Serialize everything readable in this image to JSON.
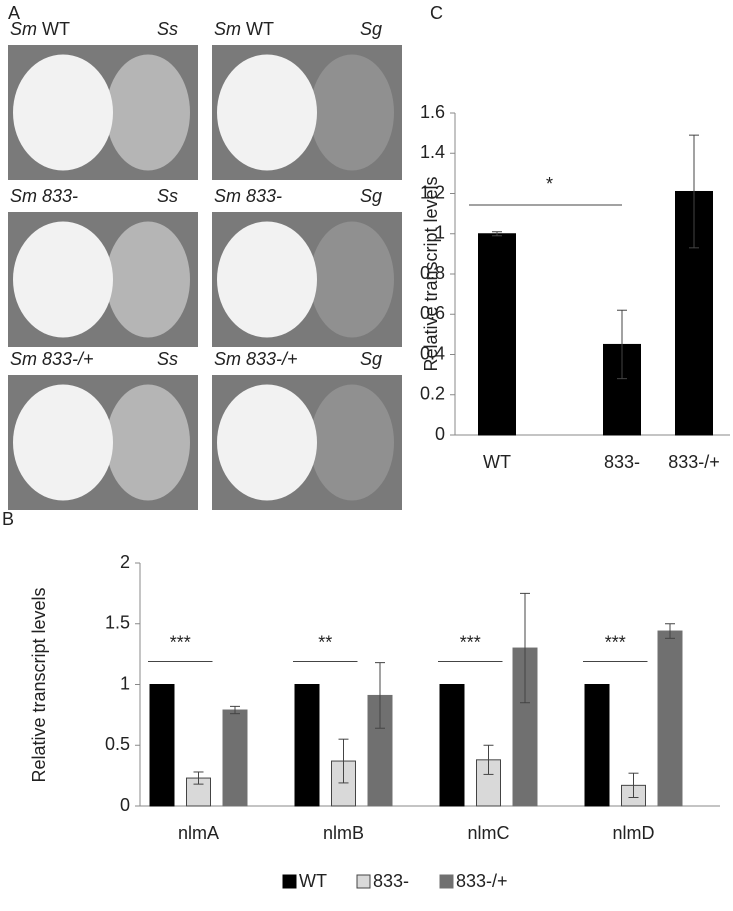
{
  "figure": {
    "panel_a": {
      "label": "A",
      "plates": [
        {
          "species": "Sm",
          "strain": "WT",
          "partner": "Ss"
        },
        {
          "species": "Sm",
          "strain": "WT",
          "partner": "Sg"
        },
        {
          "species": "Sm",
          "strain": "833-",
          "partner": "Ss"
        },
        {
          "species": "Sm",
          "strain": "833-",
          "partner": "Sg"
        },
        {
          "species": "Sm",
          "strain": "833-/+",
          "partner": "Ss"
        },
        {
          "species": "Sm",
          "strain": "833-/+",
          "partner": "Sg"
        }
      ]
    }
  },
  "chart_data": [
    {
      "type": "bar",
      "panel": "C",
      "ylabel": "Relative  transcript levels",
      "categories": [
        "WT",
        "833-",
        "833-/+"
      ],
      "series": [
        {
          "name": "WT",
          "color": "#000000",
          "values": [
            1.0,
            0.45,
            1.21
          ],
          "errors": [
            0.01,
            0.17,
            0.28
          ]
        }
      ],
      "annotation": "*",
      "ylim": [
        0,
        1.6
      ],
      "yticks": [
        0,
        0.2,
        0.4,
        0.6,
        0.8,
        1,
        1.2,
        1.4,
        1.6
      ]
    },
    {
      "type": "bar",
      "panel": "B",
      "ylabel": "Relative  transcript levels",
      "categories": [
        "nlmA",
        "nlmB",
        "nlmC",
        "nlmD"
      ],
      "series": [
        {
          "name": "WT",
          "color": "#000000",
          "values": [
            1,
            1,
            1,
            1
          ],
          "errors": [
            0,
            0,
            0,
            0
          ]
        },
        {
          "name": "833-",
          "color": "#d9d9d9",
          "values": [
            0.23,
            0.37,
            0.38,
            0.17
          ],
          "errors": [
            0.05,
            0.18,
            0.12,
            0.1
          ]
        },
        {
          "name": "833-/+",
          "color": "#707070",
          "values": [
            0.79,
            0.91,
            1.3,
            1.44
          ],
          "errors": [
            0.03,
            0.27,
            0.45,
            0.06
          ]
        }
      ],
      "annotations": [
        "***",
        "**",
        "***",
        "***"
      ],
      "ylim": [
        0,
        2
      ],
      "yticks": [
        0,
        0.5,
        1,
        1.5,
        2
      ],
      "legend": "bottom"
    }
  ]
}
